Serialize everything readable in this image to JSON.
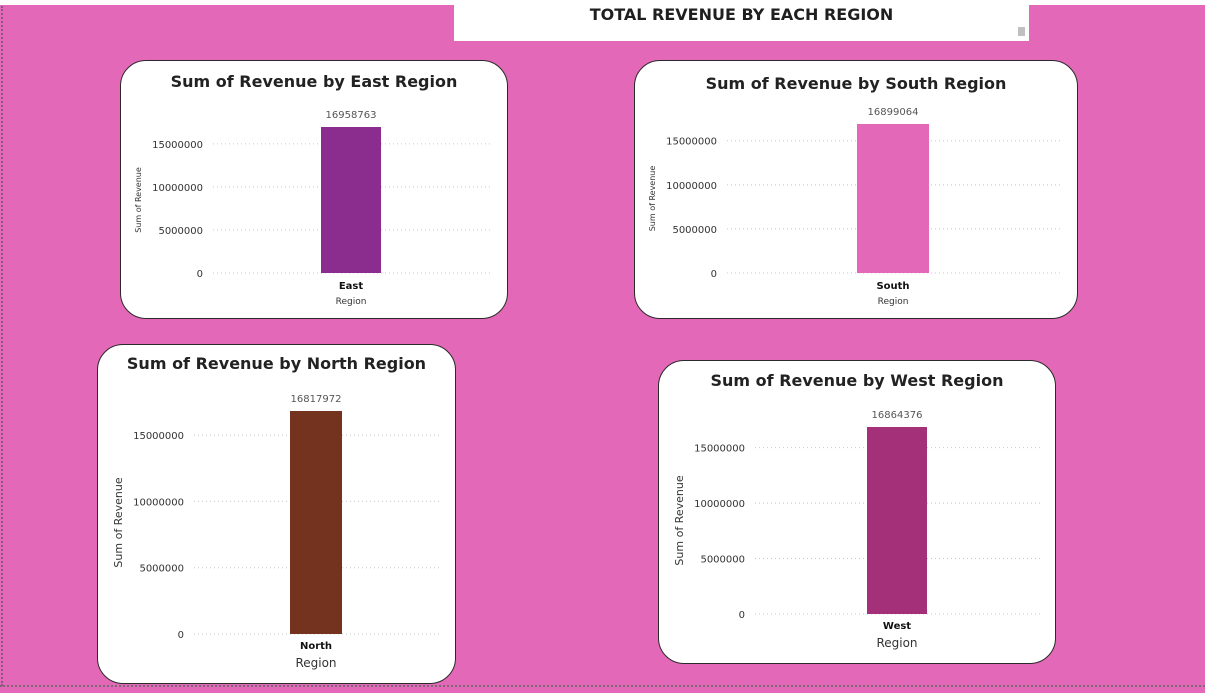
{
  "page": {
    "title": "TOTAL REVENUE BY EACH REGION",
    "background": "#e468b8"
  },
  "chart_data": [
    {
      "type": "bar",
      "title": "Sum of Revenue by East Region",
      "xlabel": "Region",
      "ylabel": "Sum of Revenue",
      "categories": [
        "East"
      ],
      "values": [
        16958763
      ],
      "data_labels": [
        "16958763"
      ],
      "yticks": [
        0,
        5000000,
        10000000,
        15000000
      ],
      "ylim": [
        0,
        16958763
      ],
      "grid": true,
      "color": "#8b2d8e"
    },
    {
      "type": "bar",
      "title": "Sum of Revenue by South Region",
      "xlabel": "Region",
      "ylabel": "Sum of Revenue",
      "categories": [
        "South"
      ],
      "values": [
        16899064
      ],
      "data_labels": [
        "16899064"
      ],
      "yticks": [
        0,
        5000000,
        10000000,
        15000000
      ],
      "ylim": [
        0,
        16899064
      ],
      "grid": true,
      "color": "#e468b8"
    },
    {
      "type": "bar",
      "title": "Sum of Revenue by North Region",
      "xlabel": "Region",
      "ylabel": "Sum of Revenue",
      "categories": [
        "North"
      ],
      "values": [
        16817972
      ],
      "data_labels": [
        "16817972"
      ],
      "yticks": [
        0,
        5000000,
        10000000,
        15000000
      ],
      "ylim": [
        0,
        16817972
      ],
      "grid": true,
      "color": "#74331e"
    },
    {
      "type": "bar",
      "title": "Sum of Revenue by West Region",
      "xlabel": "Region",
      "ylabel": "Sum of Revenue",
      "categories": [
        "West"
      ],
      "values": [
        16864376
      ],
      "data_labels": [
        "16864376"
      ],
      "yticks": [
        0,
        5000000,
        10000000,
        15000000
      ],
      "ylim": [
        0,
        16864376
      ],
      "grid": true,
      "color": "#a5307a"
    }
  ]
}
